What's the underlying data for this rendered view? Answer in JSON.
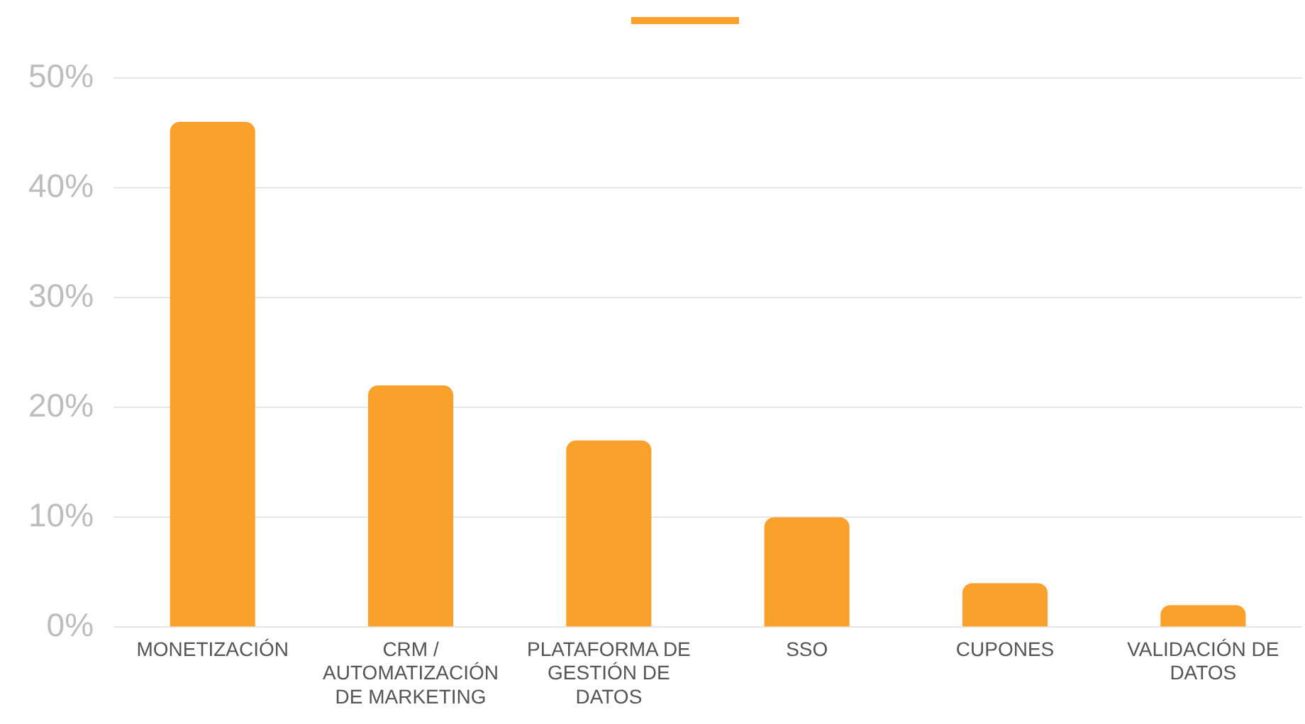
{
  "chart_data": {
    "type": "bar",
    "categories": [
      "MONETIZACIÓN",
      "CRM / AUTOMATIZACIÓN DE MARKETING",
      "PLATAFORMA DE GESTIÓN DE DATOS",
      "SSO",
      "CUPONES",
      "VALIDACIÓN DE DATOS"
    ],
    "series": [
      {
        "color": "#f9a12b",
        "values": [
          46,
          22,
          17,
          10,
          4,
          2
        ]
      }
    ],
    "ylim": [
      0,
      50
    ],
    "yticks": [
      {
        "value": 0,
        "label": "0%"
      },
      {
        "value": 10,
        "label": "10%"
      },
      {
        "value": 20,
        "label": "20%"
      },
      {
        "value": 30,
        "label": "30%"
      },
      {
        "value": 40,
        "label": "40%"
      },
      {
        "value": 50,
        "label": "50%"
      }
    ],
    "grid": "y"
  }
}
